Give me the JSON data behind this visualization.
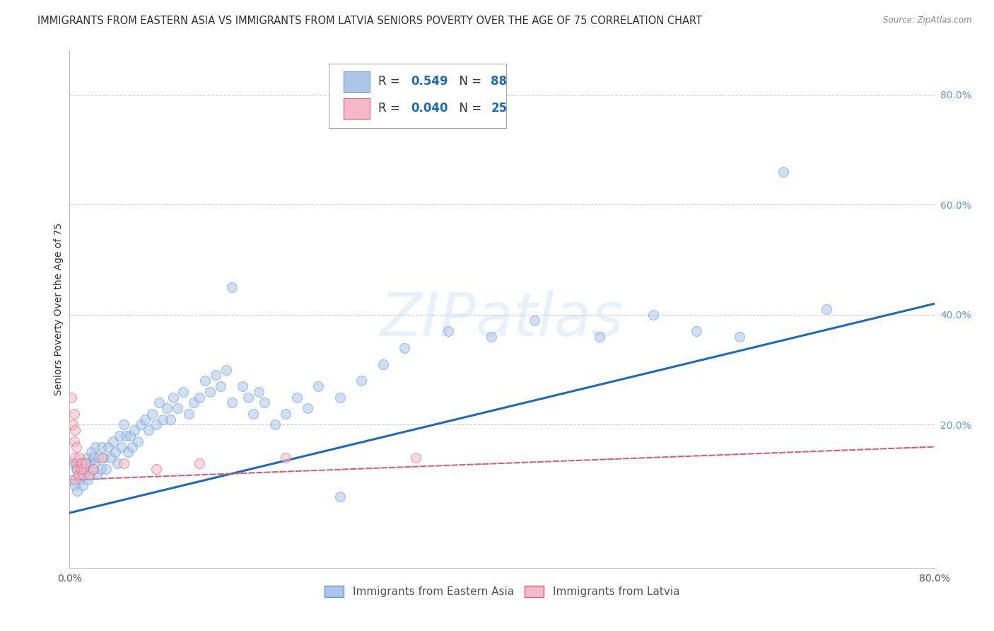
{
  "title": "IMMIGRANTS FROM EASTERN ASIA VS IMMIGRANTS FROM LATVIA SENIORS POVERTY OVER THE AGE OF 75 CORRELATION CHART",
  "source": "Source: ZipAtlas.com",
  "ylabel": "Seniors Poverty Over the Age of 75",
  "xlim": [
    0.0,
    0.8
  ],
  "ylim": [
    -0.06,
    0.88
  ],
  "x_tick_positions": [
    0.0,
    0.1,
    0.2,
    0.3,
    0.4,
    0.5,
    0.6,
    0.7,
    0.8
  ],
  "x_tick_labels": [
    "0.0%",
    "",
    "",
    "",
    "",
    "",
    "",
    "",
    "80.0%"
  ],
  "y_ticks_right": [
    0.2,
    0.4,
    0.6,
    0.8
  ],
  "y_tick_labels_right": [
    "20.0%",
    "40.0%",
    "60.0%",
    "80.0%"
  ],
  "grid_color": "#cccccc",
  "background_color": "#ffffff",
  "watermark": "ZIPatlas",
  "series": [
    {
      "name": "Immigrants from Eastern Asia",
      "color": "#adc6e8",
      "edge_color": "#5b9bd5",
      "R": 0.549,
      "N": 88,
      "x": [
        0.003,
        0.004,
        0.005,
        0.006,
        0.007,
        0.008,
        0.009,
        0.01,
        0.011,
        0.012,
        0.013,
        0.014,
        0.015,
        0.016,
        0.017,
        0.018,
        0.019,
        0.02,
        0.021,
        0.022,
        0.023,
        0.024,
        0.025,
        0.027,
        0.029,
        0.03,
        0.032,
        0.034,
        0.036,
        0.038,
        0.04,
        0.042,
        0.044,
        0.046,
        0.048,
        0.05,
        0.052,
        0.054,
        0.056,
        0.058,
        0.06,
        0.063,
        0.066,
        0.07,
        0.073,
        0.076,
        0.08,
        0.083,
        0.086,
        0.09,
        0.093,
        0.096,
        0.1,
        0.105,
        0.11,
        0.115,
        0.12,
        0.125,
        0.13,
        0.135,
        0.14,
        0.145,
        0.15,
        0.16,
        0.165,
        0.17,
        0.175,
        0.18,
        0.19,
        0.2,
        0.21,
        0.22,
        0.23,
        0.25,
        0.27,
        0.29,
        0.31,
        0.35,
        0.39,
        0.43,
        0.49,
        0.54,
        0.58,
        0.62,
        0.66,
        0.7,
        0.15,
        0.25
      ],
      "y": [
        0.1,
        0.13,
        0.09,
        0.12,
        0.08,
        0.11,
        0.13,
        0.1,
        0.12,
        0.09,
        0.11,
        0.13,
        0.12,
        0.14,
        0.1,
        0.13,
        0.11,
        0.15,
        0.12,
        0.14,
        0.13,
        0.16,
        0.11,
        0.14,
        0.12,
        0.16,
        0.14,
        0.12,
        0.16,
        0.14,
        0.17,
        0.15,
        0.13,
        0.18,
        0.16,
        0.2,
        0.18,
        0.15,
        0.18,
        0.16,
        0.19,
        0.17,
        0.2,
        0.21,
        0.19,
        0.22,
        0.2,
        0.24,
        0.21,
        0.23,
        0.21,
        0.25,
        0.23,
        0.26,
        0.22,
        0.24,
        0.25,
        0.28,
        0.26,
        0.29,
        0.27,
        0.3,
        0.24,
        0.27,
        0.25,
        0.22,
        0.26,
        0.24,
        0.2,
        0.22,
        0.25,
        0.23,
        0.27,
        0.25,
        0.28,
        0.31,
        0.34,
        0.37,
        0.36,
        0.39,
        0.36,
        0.4,
        0.37,
        0.36,
        0.66,
        0.41,
        0.45,
        0.07
      ],
      "trend_color": "#1f6ab5",
      "trend_x": [
        0.0,
        0.8
      ],
      "trend_y": [
        0.04,
        0.42
      ]
    },
    {
      "name": "Immigrants from Latvia",
      "color": "#f4b8c8",
      "edge_color": "#d4607a",
      "R": 0.04,
      "N": 25,
      "x": [
        0.002,
        0.003,
        0.004,
        0.004,
        0.005,
        0.005,
        0.005,
        0.006,
        0.006,
        0.007,
        0.008,
        0.009,
        0.01,
        0.011,
        0.012,
        0.013,
        0.015,
        0.018,
        0.022,
        0.03,
        0.05,
        0.08,
        0.12,
        0.2,
        0.32
      ],
      "y": [
        0.25,
        0.2,
        0.17,
        0.22,
        0.1,
        0.14,
        0.19,
        0.13,
        0.16,
        0.12,
        0.11,
        0.14,
        0.12,
        0.13,
        0.11,
        0.12,
        0.13,
        0.11,
        0.12,
        0.14,
        0.13,
        0.12,
        0.13,
        0.14,
        0.14
      ],
      "trend_color": "#d4607a",
      "trend_x": [
        0.0,
        0.8
      ],
      "trend_y": [
        0.1,
        0.16
      ]
    }
  ],
  "title_fontsize": 10.5,
  "axis_label_fontsize": 10,
  "tick_fontsize": 10,
  "marker_size": 100,
  "marker_alpha": 0.55
}
